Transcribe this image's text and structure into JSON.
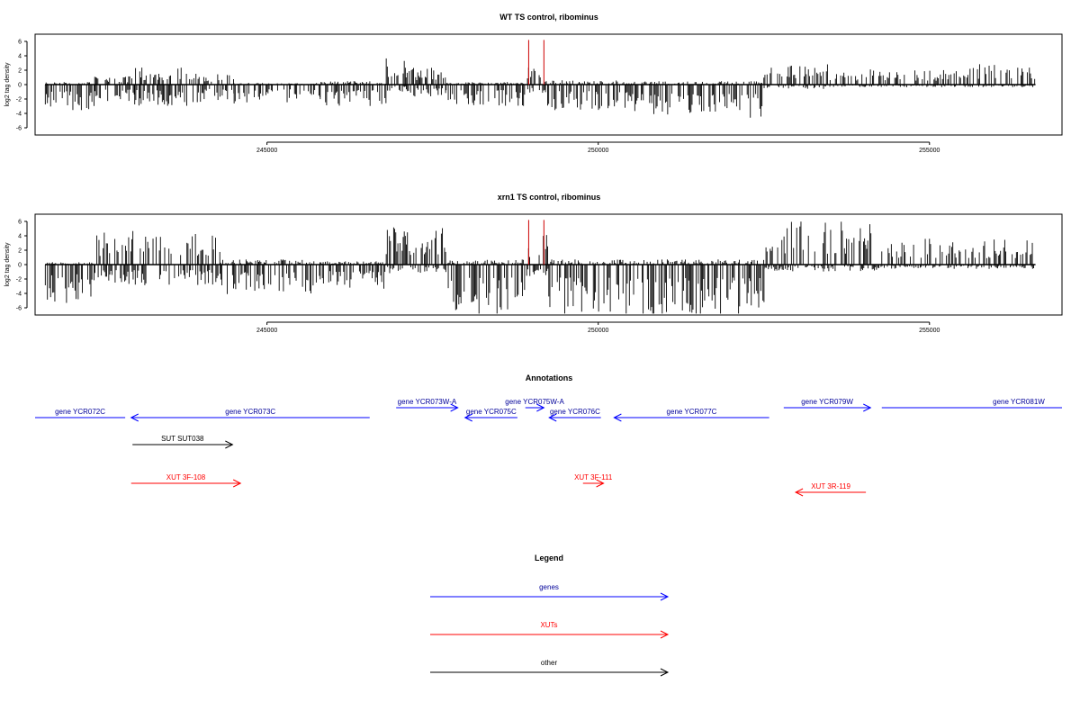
{
  "chart_data": [
    {
      "type": "bar",
      "title": "WT TS control, ribominus",
      "xlabel": "",
      "ylabel": "log2 tag density",
      "xlim": [
        241500,
        257000
      ],
      "ylim": [
        -7,
        7
      ],
      "x_ticks": [
        245000,
        250000,
        255000
      ],
      "y_ticks": [
        6,
        4,
        2,
        0,
        -2,
        -4,
        -6
      ],
      "x_tick_labels": [
        "245000",
        "250000",
        "255000"
      ],
      "y_tick_labels": [
        "6",
        "4",
        "2",
        "0",
        "-2",
        "-4",
        "-6"
      ],
      "marker_lines": [
        {
          "x": 248950,
          "color": "#cc0000"
        },
        {
          "x": 249180,
          "color": "#cc0000"
        }
      ],
      "density_profile": [
        {
          "from": 241650,
          "to": 242400,
          "pos": 0.3,
          "neg": 3.0
        },
        {
          "from": 242400,
          "to": 243000,
          "pos": 1.0,
          "neg": 2.0
        },
        {
          "from": 243000,
          "to": 244000,
          "pos": 2.0,
          "neg": 2.5
        },
        {
          "from": 244000,
          "to": 244500,
          "pos": 1.2,
          "neg": 1.8
        },
        {
          "from": 244500,
          "to": 245800,
          "pos": 0.2,
          "neg": 2.2
        },
        {
          "from": 245800,
          "to": 246800,
          "pos": 0.4,
          "neg": 2.5
        },
        {
          "from": 246800,
          "to": 247100,
          "pos": 3.5,
          "neg": 0.8
        },
        {
          "from": 247100,
          "to": 247700,
          "pos": 2.0,
          "neg": 1.5
        },
        {
          "from": 247700,
          "to": 248900,
          "pos": 0.3,
          "neg": 2.5
        },
        {
          "from": 248900,
          "to": 249200,
          "pos": 2.8,
          "neg": 1.0
        },
        {
          "from": 249200,
          "to": 250500,
          "pos": 0.5,
          "neg": 3.0
        },
        {
          "from": 250500,
          "to": 252500,
          "pos": 0.4,
          "neg": 4.0
        },
        {
          "from": 252500,
          "to": 253500,
          "pos": 2.5,
          "neg": 0.5
        },
        {
          "from": 253500,
          "to": 255500,
          "pos": 1.8,
          "neg": 0.3
        },
        {
          "from": 255500,
          "to": 256600,
          "pos": 2.6,
          "neg": 0.3
        }
      ]
    },
    {
      "type": "bar",
      "title": "xrn1 TS control, ribominus",
      "xlabel": "",
      "ylabel": "log2 tag density",
      "xlim": [
        241500,
        257000
      ],
      "ylim": [
        -7,
        7
      ],
      "x_ticks": [
        245000,
        250000,
        255000
      ],
      "y_ticks": [
        6,
        4,
        2,
        0,
        -2,
        -4,
        -6
      ],
      "x_tick_labels": [
        "245000",
        "250000",
        "255000"
      ],
      "y_tick_labels": [
        "6",
        "4",
        "2",
        "0",
        "-2",
        "-4",
        "-6"
      ],
      "marker_lines": [
        {
          "x": 248950,
          "color": "#cc0000"
        },
        {
          "x": 249180,
          "color": "#cc0000"
        }
      ],
      "density_profile": [
        {
          "from": 241650,
          "to": 242400,
          "pos": 0.3,
          "neg": 4.5
        },
        {
          "from": 242400,
          "to": 244300,
          "pos": 4.0,
          "neg": 2.5
        },
        {
          "from": 244300,
          "to": 245800,
          "pos": 0.6,
          "neg": 3.5
        },
        {
          "from": 245800,
          "to": 246800,
          "pos": 0.4,
          "neg": 2.8
        },
        {
          "from": 246800,
          "to": 247700,
          "pos": 4.5,
          "neg": 1.0
        },
        {
          "from": 247700,
          "to": 248900,
          "pos": 0.6,
          "neg": 6.0
        },
        {
          "from": 248900,
          "to": 249250,
          "pos": 3.5,
          "neg": 1.5
        },
        {
          "from": 249250,
          "to": 252500,
          "pos": 0.6,
          "neg": 6.0
        },
        {
          "from": 252500,
          "to": 254200,
          "pos": 5.0,
          "neg": 0.8
        },
        {
          "from": 254200,
          "to": 256600,
          "pos": 3.0,
          "neg": 0.5
        }
      ]
    }
  ],
  "annotations": {
    "title": "Annotations",
    "features": [
      {
        "label": "gene YCR072C",
        "kind": "gene",
        "color": "#0000ff",
        "start": 241500,
        "end": 242860,
        "dir": "none",
        "track": 1
      },
      {
        "label": "gene YCR073C",
        "kind": "gene",
        "color": "#0000ff",
        "start": 242950,
        "end": 246550,
        "dir": "left",
        "track": 1
      },
      {
        "label": "gene YCR073W-A",
        "kind": "gene",
        "color": "#0000ff",
        "start": 246950,
        "end": 247880,
        "dir": "right",
        "track": 0
      },
      {
        "label": "gene YCR075C",
        "kind": "gene",
        "color": "#0000ff",
        "start": 247990,
        "end": 248780,
        "dir": "left",
        "track": 1
      },
      {
        "label": "gene YCR075W-A",
        "kind": "gene",
        "color": "#0000ff",
        "start": 248900,
        "end": 249180,
        "dir": "right",
        "track": 0
      },
      {
        "label": "gene YCR076C",
        "kind": "gene",
        "color": "#0000ff",
        "start": 249260,
        "end": 250040,
        "dir": "left",
        "track": 1
      },
      {
        "label": "gene YCR077C",
        "kind": "gene",
        "color": "#0000ff",
        "start": 250240,
        "end": 252580,
        "dir": "left",
        "track": 1
      },
      {
        "label": "gene YCR079W",
        "kind": "gene",
        "color": "#0000ff",
        "start": 252800,
        "end": 254110,
        "dir": "right",
        "track": 0
      },
      {
        "label": "gene YCR081W",
        "kind": "gene",
        "color": "#0000ff",
        "start": 254280,
        "end": 257000,
        "dir": "none",
        "track": 0
      },
      {
        "label": "SUT SUT038",
        "kind": "other",
        "color": "#000000",
        "start": 242970,
        "end": 244480,
        "dir": "right",
        "track": 3
      },
      {
        "label": "XUT 3F-108",
        "kind": "XUT",
        "color": "#ff0000",
        "start": 242950,
        "end": 244600,
        "dir": "right",
        "track": 5
      },
      {
        "label": "XUT 3F-111",
        "kind": "XUT",
        "color": "#ff0000",
        "start": 249770,
        "end": 250080,
        "dir": "right",
        "track": 5
      },
      {
        "label": "XUT 3R-119",
        "kind": "XUT",
        "color": "#ff0000",
        "start": 252980,
        "end": 254040,
        "dir": "left",
        "track": 6
      }
    ]
  },
  "legend": {
    "title": "Legend",
    "items": [
      {
        "label": "genes",
        "color": "#0000ff"
      },
      {
        "label": "XUTs",
        "color": "#ff0000"
      },
      {
        "label": "other",
        "color": "#000000"
      }
    ]
  }
}
